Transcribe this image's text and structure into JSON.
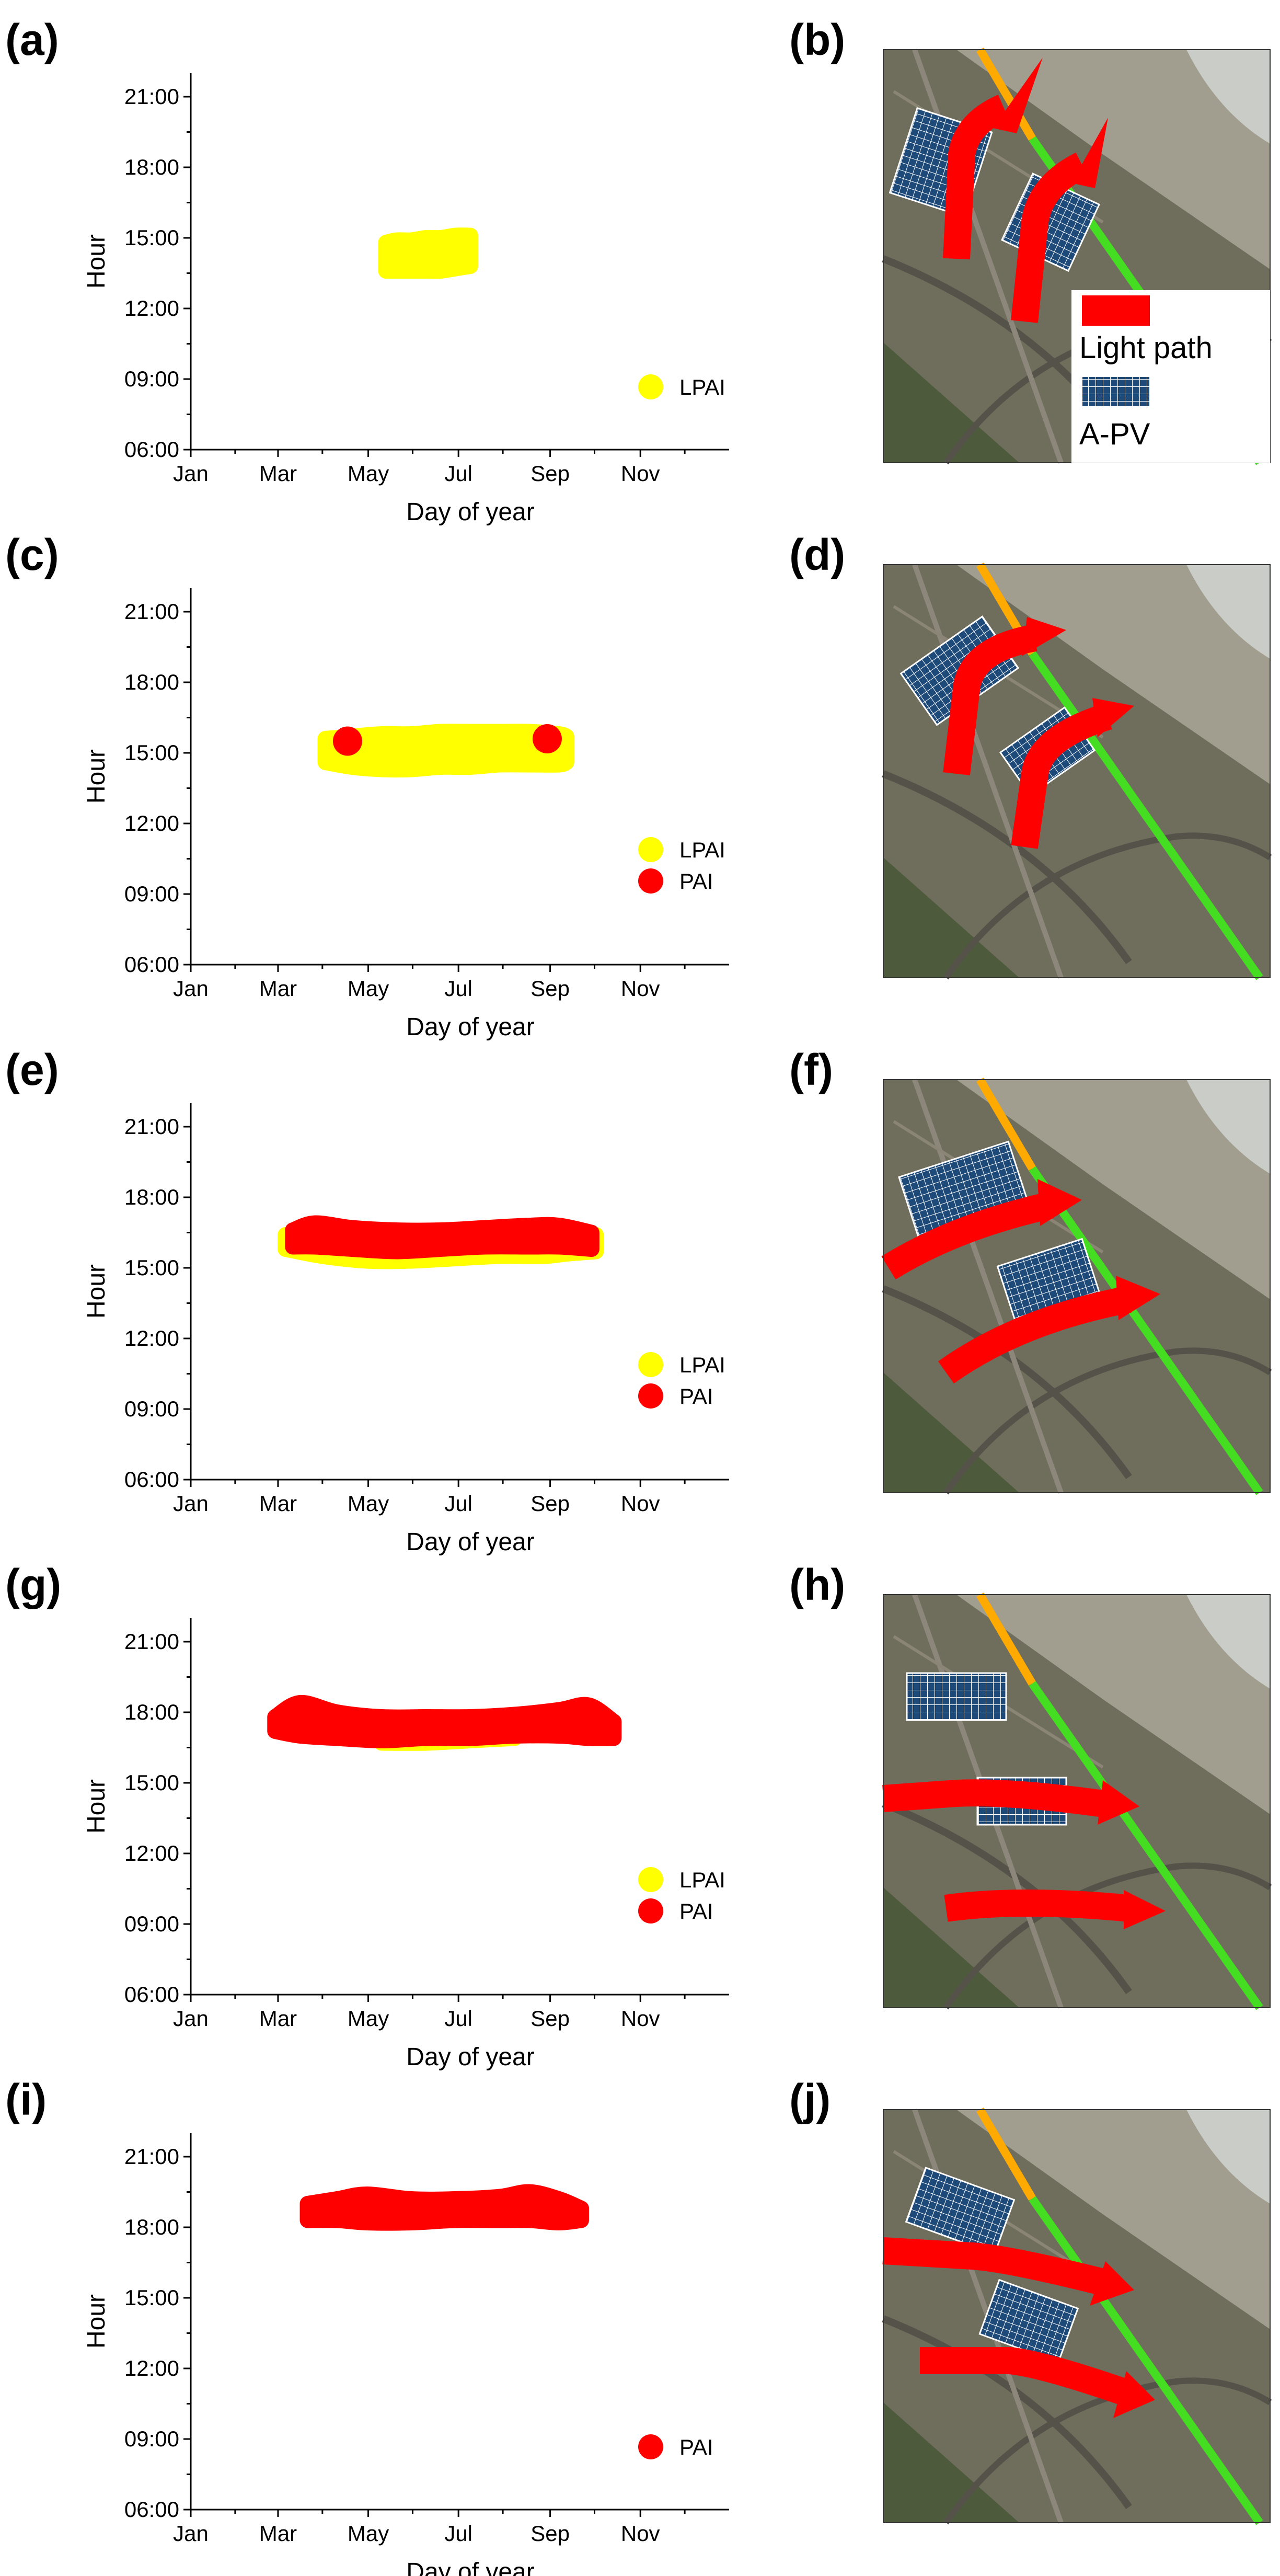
{
  "figure": {
    "colors": {
      "lpai": "#ffff00",
      "pai": "#ff0000",
      "green": "#44dd22",
      "orange": "#ffaa00",
      "panel": "#1e4a7a"
    },
    "map_legend": {
      "light_path": "Light path",
      "apv": "A-PV"
    }
  },
  "chart_data": [
    {
      "type": "scatter",
      "panel": "(a)",
      "map_panel": "(b)",
      "xlabel": "Day of year",
      "ylabel": "Hour",
      "xlim": [
        1,
        365
      ],
      "ylim": [
        6,
        22
      ],
      "x_ticks": [
        {
          "v": 1,
          "label": "Jan"
        },
        {
          "v": 60,
          "label": "Mar"
        },
        {
          "v": 121,
          "label": "May"
        },
        {
          "v": 182,
          "label": "Jul"
        },
        {
          "v": 244,
          "label": "Sep"
        },
        {
          "v": 305,
          "label": "Nov"
        }
      ],
      "y_ticks": [
        {
          "v": 6,
          "label": "06:00"
        },
        {
          "v": 9,
          "label": "09:00"
        },
        {
          "v": 12,
          "label": "12:00"
        },
        {
          "v": 15,
          "label": "15:00"
        },
        {
          "v": 18,
          "label": "18:00"
        },
        {
          "v": 21,
          "label": "21:00"
        }
      ],
      "legend": [
        "LPAI"
      ],
      "series": [
        {
          "name": "LPAI",
          "color": "#ffff00",
          "band": {
            "x": [
              133,
              140,
              150,
              160,
              170,
              180,
              190
            ],
            "low": [
              13.6,
              13.6,
              13.6,
              13.6,
              13.6,
              13.7,
              13.8
            ],
            "high": [
              14.8,
              14.9,
              14.9,
              15.0,
              15.0,
              15.1,
              15.1
            ]
          }
        }
      ]
    },
    {
      "type": "scatter",
      "panel": "(c)",
      "map_panel": "(d)",
      "xlabel": "Day of year",
      "ylabel": "Hour",
      "xlim": [
        1,
        365
      ],
      "ylim": [
        6,
        22
      ],
      "x_ticks": [
        {
          "v": 1,
          "label": "Jan"
        },
        {
          "v": 60,
          "label": "Mar"
        },
        {
          "v": 121,
          "label": "May"
        },
        {
          "v": 182,
          "label": "Jul"
        },
        {
          "v": 244,
          "label": "Sep"
        },
        {
          "v": 305,
          "label": "Nov"
        }
      ],
      "y_ticks": [
        {
          "v": 6,
          "label": "06:00"
        },
        {
          "v": 9,
          "label": "09:00"
        },
        {
          "v": 12,
          "label": "12:00"
        },
        {
          "v": 15,
          "label": "15:00"
        },
        {
          "v": 18,
          "label": "18:00"
        },
        {
          "v": 21,
          "label": "21:00"
        }
      ],
      "legend": [
        "LPAI",
        "PAI"
      ],
      "series": [
        {
          "name": "LPAI",
          "color": "#ffff00",
          "band": {
            "x": [
              92,
              110,
              130,
              150,
              170,
              190,
              210,
              230,
              250,
              255
            ],
            "low": [
              14.6,
              14.4,
              14.3,
              14.3,
              14.4,
              14.4,
              14.5,
              14.5,
              14.5,
              14.6
            ],
            "high": [
              15.6,
              15.7,
              15.8,
              15.8,
              15.9,
              15.9,
              15.9,
              15.9,
              15.8,
              15.7
            ]
          }
        },
        {
          "name": "PAI",
          "color": "#ff0000",
          "points": [
            {
              "x": 107,
              "y": 15.5
            },
            {
              "x": 242,
              "y": 15.6
            }
          ]
        }
      ]
    },
    {
      "type": "scatter",
      "panel": "(e)",
      "map_panel": "(f)",
      "xlabel": "Day of year",
      "ylabel": "Hour",
      "xlim": [
        1,
        365
      ],
      "ylim": [
        6,
        22
      ],
      "x_ticks": [
        {
          "v": 1,
          "label": "Jan"
        },
        {
          "v": 60,
          "label": "Mar"
        },
        {
          "v": 121,
          "label": "May"
        },
        {
          "v": 182,
          "label": "Jul"
        },
        {
          "v": 244,
          "label": "Sep"
        },
        {
          "v": 305,
          "label": "Nov"
        }
      ],
      "y_ticks": [
        {
          "v": 6,
          "label": "06:00"
        },
        {
          "v": 9,
          "label": "09:00"
        },
        {
          "v": 12,
          "label": "12:00"
        },
        {
          "v": 15,
          "label": "15:00"
        },
        {
          "v": 18,
          "label": "18:00"
        },
        {
          "v": 21,
          "label": "21:00"
        }
      ],
      "legend": [
        "LPAI",
        "PAI"
      ],
      "series": [
        {
          "name": "LPAI",
          "color": "#ffff00",
          "band": {
            "x": [
              65,
              90,
              120,
              150,
              180,
              210,
              240,
              255,
              275
            ],
            "low": [
              15.8,
              15.5,
              15.3,
              15.3,
              15.4,
              15.5,
              15.5,
              15.6,
              15.7
            ],
            "high": [
              16.4,
              16.3,
              16.3,
              16.3,
              16.3,
              16.3,
              16.4,
              16.4,
              16.4
            ]
          }
        },
        {
          "name": "PAI",
          "color": "#ff0000",
          "band": {
            "x": [
              70,
              85,
              110,
              140,
              170,
              200,
              230,
              250,
              272
            ],
            "low": [
              15.9,
              15.9,
              15.8,
              15.7,
              15.8,
              15.9,
              15.9,
              15.9,
              15.8
            ],
            "high": [
              16.6,
              16.9,
              16.7,
              16.6,
              16.6,
              16.7,
              16.8,
              16.8,
              16.5
            ]
          }
        }
      ]
    },
    {
      "type": "scatter",
      "panel": "(g)",
      "map_panel": "(h)",
      "xlabel": "Day of year",
      "ylabel": "Hour",
      "xlim": [
        1,
        365
      ],
      "ylim": [
        6,
        22
      ],
      "x_ticks": [
        {
          "v": 1,
          "label": "Jan"
        },
        {
          "v": 60,
          "label": "Mar"
        },
        {
          "v": 121,
          "label": "May"
        },
        {
          "v": 182,
          "label": "Jul"
        },
        {
          "v": 244,
          "label": "Sep"
        },
        {
          "v": 305,
          "label": "Nov"
        }
      ],
      "y_ticks": [
        {
          "v": 6,
          "label": "06:00"
        },
        {
          "v": 9,
          "label": "09:00"
        },
        {
          "v": 12,
          "label": "12:00"
        },
        {
          "v": 15,
          "label": "15:00"
        },
        {
          "v": 18,
          "label": "18:00"
        },
        {
          "v": 21,
          "label": "21:00"
        }
      ],
      "legend": [
        "LPAI",
        "PAI"
      ],
      "series": [
        {
          "name": "LPAI",
          "color": "#ffff00",
          "band": {
            "x": [
              130,
              160,
              190,
              220
            ],
            "low": [
              16.7,
              16.7,
              16.8,
              16.9
            ],
            "high": [
              17.2,
              17.2,
              17.2,
              17.3
            ]
          }
        },
        {
          "name": "PAI",
          "color": "#ff0000",
          "band": {
            "x": [
              58,
              75,
              100,
              130,
              160,
              190,
              220,
              250,
              270,
              287
            ],
            "low": [
              17.2,
              17.0,
              16.9,
              16.8,
              16.9,
              16.9,
              17.0,
              17.0,
              16.9,
              16.9
            ],
            "high": [
              17.8,
              18.4,
              18.0,
              17.8,
              17.8,
              17.8,
              17.9,
              18.1,
              18.3,
              17.6
            ]
          }
        }
      ]
    },
    {
      "type": "scatter",
      "panel": "(i)",
      "map_panel": "(j)",
      "xlabel": "Day of year",
      "ylabel": "Hour",
      "xlim": [
        1,
        365
      ],
      "ylim": [
        6,
        22
      ],
      "x_ticks": [
        {
          "v": 1,
          "label": "Jan"
        },
        {
          "v": 60,
          "label": "Mar"
        },
        {
          "v": 121,
          "label": "May"
        },
        {
          "v": 182,
          "label": "Jul"
        },
        {
          "v": 244,
          "label": "Sep"
        },
        {
          "v": 305,
          "label": "Nov"
        }
      ],
      "y_ticks": [
        {
          "v": 6,
          "label": "06:00"
        },
        {
          "v": 9,
          "label": "09:00"
        },
        {
          "v": 12,
          "label": "12:00"
        },
        {
          "v": 15,
          "label": "15:00"
        },
        {
          "v": 18,
          "label": "18:00"
        },
        {
          "v": 21,
          "label": "21:00"
        }
      ],
      "legend": [
        "PAI"
      ],
      "series": [
        {
          "name": "PAI",
          "color": "#ff0000",
          "band": {
            "x": [
              80,
              100,
              120,
              150,
              180,
              210,
              230,
              250,
              265
            ],
            "low": [
              18.3,
              18.3,
              18.2,
              18.2,
              18.3,
              18.3,
              18.3,
              18.2,
              18.3
            ],
            "high": [
              19.0,
              19.2,
              19.4,
              19.2,
              19.2,
              19.3,
              19.5,
              19.2,
              18.8
            ]
          }
        }
      ]
    }
  ]
}
